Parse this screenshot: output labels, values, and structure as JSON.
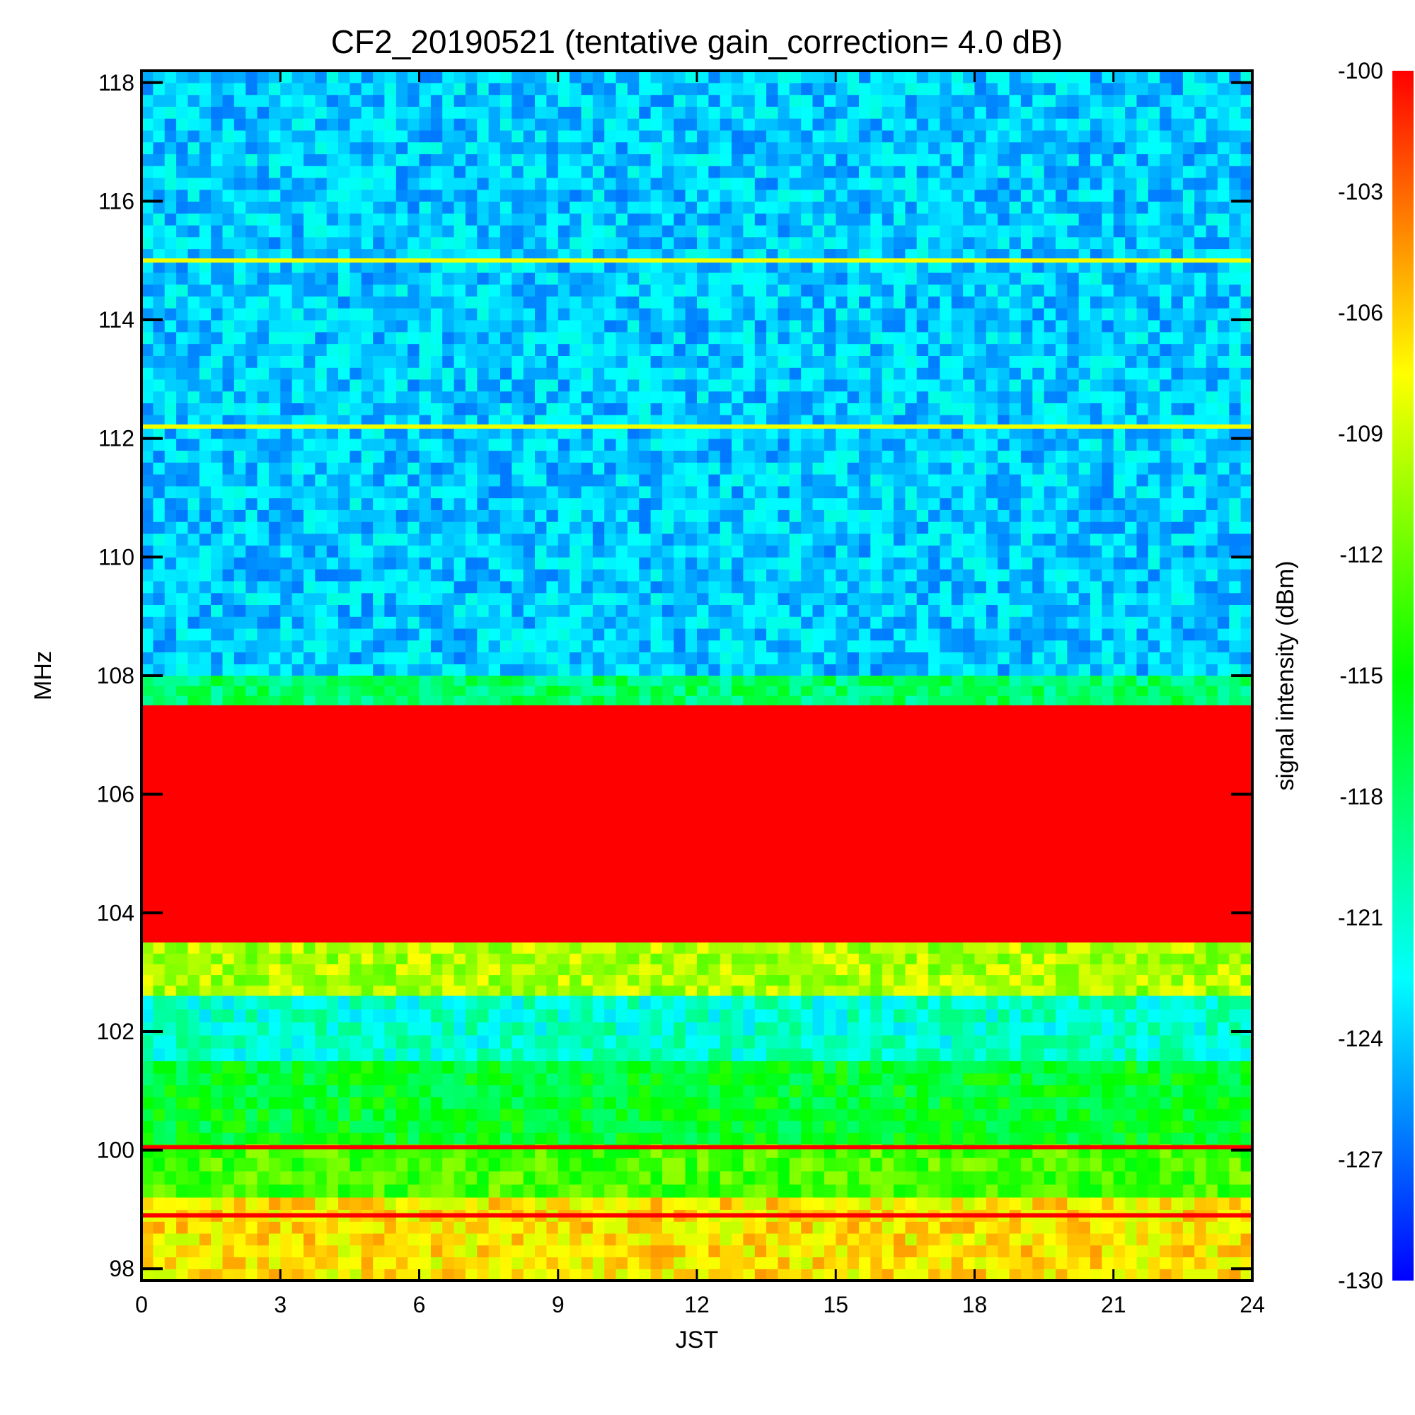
{
  "chart_data": {
    "type": "heatmap",
    "title": "CF2_20190521 (tentative gain_correction=  4.0 dB)",
    "xlabel": "JST",
    "ylabel": "MHz",
    "colorbar_label": "signal intensity (dBm)",
    "xlim": [
      0,
      24
    ],
    "ylim": [
      97.8,
      118.2
    ],
    "zlim": [
      -130,
      -100
    ],
    "x_ticks": [
      0,
      3,
      6,
      9,
      12,
      15,
      18,
      21,
      24
    ],
    "y_ticks": [
      98,
      100,
      102,
      104,
      106,
      108,
      110,
      112,
      114,
      116,
      118
    ],
    "colorbar_ticks": [
      -100,
      -103,
      -106,
      -109,
      -112,
      -115,
      -118,
      -121,
      -124,
      -127,
      -130
    ],
    "colormap": [
      "#0000ff",
      "#0080ff",
      "#00ffff",
      "#00ff80",
      "#00ff00",
      "#80ff00",
      "#ffff00",
      "#ff8000",
      "#ff0000"
    ],
    "frequency_bands": [
      {
        "range_mhz": [
          108.0,
          118.2
        ],
        "typical_dbm": -124,
        "description": "blue-cyan noise"
      },
      {
        "range_mhz": [
          107.5,
          108.0
        ],
        "typical_dbm": -118
      },
      {
        "range_mhz": [
          103.5,
          107.5
        ],
        "typical_dbm": -100
      },
      {
        "range_mhz": [
          102.6,
          103.5
        ],
        "typical_dbm": -110
      },
      {
        "range_mhz": [
          101.5,
          102.6
        ],
        "typical_dbm": -121
      },
      {
        "range_mhz": [
          100.1,
          101.5
        ],
        "typical_dbm": -116
      },
      {
        "range_mhz": [
          99.2,
          100.1
        ],
        "typical_dbm": -113
      },
      {
        "range_mhz": [
          97.8,
          99.2
        ],
        "typical_dbm": -107
      }
    ],
    "narrow_lines": [
      {
        "freq_mhz": 115.0,
        "dbm": -108
      },
      {
        "freq_mhz": 112.2,
        "dbm": -108
      },
      {
        "freq_mhz": 100.05,
        "dbm": -100
      },
      {
        "freq_mhz": 98.9,
        "dbm": -100
      }
    ]
  }
}
